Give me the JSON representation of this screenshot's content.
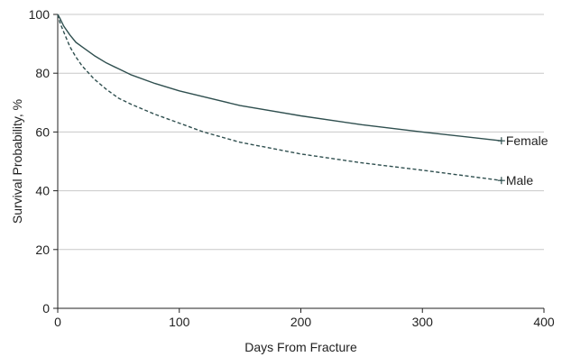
{
  "chart_data": {
    "type": "line",
    "title": "",
    "xlabel": "Days From Fracture",
    "ylabel": "Survival Probability, %",
    "xlim": [
      0,
      400
    ],
    "ylim": [
      0,
      100
    ],
    "x_ticks": [
      0,
      100,
      200,
      300,
      400
    ],
    "y_ticks": [
      0,
      20,
      40,
      60,
      80,
      100
    ],
    "grid": "horizontal",
    "legend": "end-of-line labels",
    "series": [
      {
        "name": "Female",
        "style": "solid",
        "color": "#2f4f4f",
        "x": [
          0,
          2,
          5,
          10,
          15,
          20,
          30,
          40,
          50,
          60,
          80,
          100,
          120,
          150,
          200,
          250,
          300,
          365
        ],
        "y": [
          100,
          98.5,
          96,
          93,
          90.5,
          89,
          86,
          83.5,
          81.5,
          79.5,
          76.5,
          74,
          72,
          69,
          65.5,
          62.5,
          60,
          57
        ]
      },
      {
        "name": "Male",
        "style": "dashed",
        "color": "#2f4f4f",
        "x": [
          0,
          2,
          5,
          10,
          15,
          20,
          30,
          40,
          50,
          60,
          80,
          100,
          120,
          150,
          200,
          250,
          300,
          365
        ],
        "y": [
          100,
          97,
          94,
          89,
          85.5,
          82.5,
          78,
          74.5,
          71.5,
          69.5,
          66,
          63,
          60,
          56.5,
          52.5,
          49.5,
          47,
          43.5
        ]
      }
    ]
  }
}
